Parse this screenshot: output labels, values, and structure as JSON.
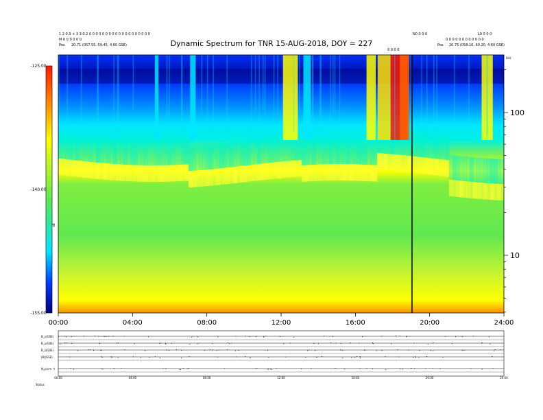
{
  "header": {
    "left_line1": "1 2 0.3 + 3 3 0.2 0 0 0 0 0 0 0 0 0 0 0 0 0 0 0 0 0 0 0",
    "left_line2": "M 0 0 0 0 0 0",
    "left_line3_label": "Pos",
    "left_line3_value": "20.71 (057.55, 59.45, 4.60 GSE)",
    "right_top_mid": "N0 0 0 0",
    "right_top_far": "L0 0 0 0",
    "right_line2": "0 0 0 0 0 0 0 0 0 0 0 0",
    "right_line3_label": "Pos",
    "right_line3_value": "20.75 (058.10, 60.20, 4.60 GSE)",
    "event_marker": "0 0 0 0"
  },
  "chart_data": {
    "type": "heatmap",
    "title": "Dynamic Spectrum for TNR 15-AUG-2018, DOY = 227",
    "x_ticks": [
      "00:00",
      "04:00",
      "08:00",
      "12:00",
      "16:00",
      "20:00",
      "24:00"
    ],
    "x_range_hours": [
      0,
      24
    ],
    "y_scale": "log",
    "y_tick_labels": [
      "100",
      "10"
    ],
    "y_tick_values": [
      100,
      10
    ],
    "y_corner_label": "kHz",
    "colorbar": {
      "label": "dB",
      "tick_labels": [
        "-125.00",
        "-140.00",
        "-155.00"
      ],
      "tick_values": [
        -125,
        -140,
        -155
      ],
      "range": [
        -155,
        -125
      ]
    },
    "vertical_marker_hour": 19.05,
    "bottom_panels": {
      "x_ticks": [
        "00:00",
        "04:00",
        "08:00",
        "12:00",
        "16:00",
        "20:00",
        "24:00"
      ],
      "rows": [
        "B_x(GSE)",
        "B_y(GSE)",
        "B_z(GSE)",
        "|B|(GSE)",
        "N_p(cm⁻³)"
      ],
      "corner_label": "Status"
    }
  },
  "colors": {
    "deep_blue": "#00007a",
    "blue": "#0038ff",
    "cyan": "#00e6ff",
    "green": "#55e855",
    "yellow": "#ffff00",
    "orange": "#ff8800",
    "red": "#ff1a00"
  }
}
